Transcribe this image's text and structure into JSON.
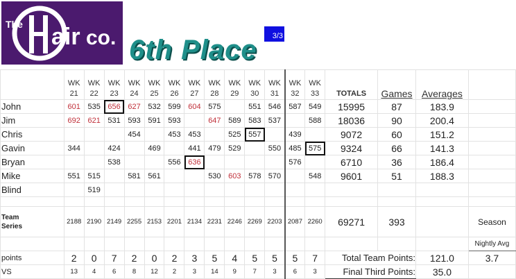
{
  "logo": {
    "text": "The Hair co."
  },
  "place": "6th Place",
  "badge": "3/3",
  "weeks": [
    "21",
    "22",
    "23",
    "24",
    "25",
    "26",
    "27",
    "28",
    "29",
    "30",
    "31",
    "32",
    "33"
  ],
  "week_prefix": "WK",
  "headers": {
    "totals": "TOTALS",
    "games": "Games",
    "averages": "Averages"
  },
  "players": [
    {
      "name": "John",
      "scores": [
        "601",
        "535",
        "656",
        "627",
        "532",
        "599",
        "604",
        "575",
        "",
        "551",
        "546",
        "587",
        "549"
      ],
      "red": [
        0,
        2,
        3,
        6
      ],
      "box": [
        2
      ],
      "total": "15995",
      "games": "87",
      "avg": "183.9"
    },
    {
      "name": "Jim",
      "scores": [
        "692",
        "621",
        "531",
        "593",
        "591",
        "593",
        "",
        "647",
        "589",
        "583",
        "537",
        "",
        "588"
      ],
      "red": [
        0,
        1,
        7
      ],
      "box": [],
      "total": "18036",
      "games": "90",
      "avg": "200.4"
    },
    {
      "name": "Chris",
      "scores": [
        "",
        "",
        "",
        "454",
        "",
        "453",
        "453",
        "",
        "525",
        "557",
        "",
        "439",
        ""
      ],
      "red": [],
      "box": [
        9
      ],
      "total": "9072",
      "games": "60",
      "avg": "151.2"
    },
    {
      "name": "Gavin",
      "scores": [
        "344",
        "",
        "424",
        "",
        "469",
        "",
        "441",
        "479",
        "529",
        "",
        "550",
        "485",
        "575"
      ],
      "red": [],
      "box": [
        12
      ],
      "total": "9324",
      "games": "66",
      "avg": "141.3"
    },
    {
      "name": "Bryan",
      "scores": [
        "",
        "",
        "538",
        "",
        "",
        "556",
        "636",
        "",
        "",
        "",
        "",
        "576",
        ""
      ],
      "red": [
        6
      ],
      "box": [
        6
      ],
      "total": "6710",
      "games": "36",
      "avg": "186.4"
    },
    {
      "name": "Mike",
      "scores": [
        "551",
        "515",
        "",
        "581",
        "561",
        "",
        "",
        "530",
        "603",
        "578",
        "570",
        "",
        "548"
      ],
      "red": [
        8
      ],
      "box": [],
      "total": "9601",
      "games": "51",
      "avg": "188.3"
    },
    {
      "name": "Blind",
      "scores": [
        "",
        "519",
        "",
        "",
        "",
        "",
        "",
        "",
        "",
        "",
        "",
        "",
        ""
      ],
      "red": [],
      "box": [],
      "total": "",
      "games": "",
      "avg": ""
    }
  ],
  "team": {
    "label_1": "Team",
    "label_2": "Series",
    "series": [
      "2188",
      "2190",
      "2149",
      "2255",
      "2153",
      "2201",
      "2134",
      "2231",
      "2246",
      "2269",
      "2203",
      "2087",
      "2260"
    ],
    "total": "69271",
    "games": "393",
    "season": "Season",
    "nightly_avg": "Nightly Avg"
  },
  "points": {
    "label": "points",
    "values": [
      "2",
      "0",
      "7",
      "2",
      "0",
      "2",
      "3",
      "5",
      "4",
      "5",
      "5",
      "5",
      "7"
    ],
    "total_label": "Total Team Points:",
    "total": "121.0",
    "avg": "3.7"
  },
  "vs": {
    "label": "VS",
    "values": [
      "13",
      "4",
      "6",
      "8",
      "12",
      "2",
      "3",
      "14",
      "9",
      "7",
      "3",
      "6",
      "3"
    ],
    "final_label": "Final Third Points:",
    "final": "35.0"
  }
}
